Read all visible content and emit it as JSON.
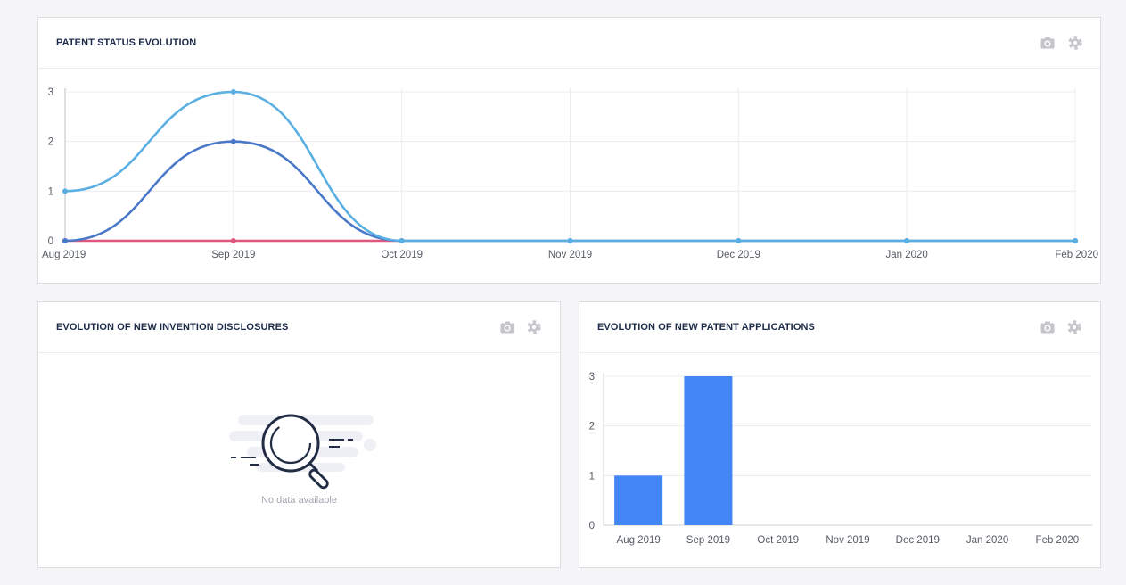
{
  "colors": {
    "series_light_blue": "#5aafe2",
    "series_dark_blue": "#4a78c8",
    "series_pink": "#e0577e",
    "bar_blue": "#4385f5",
    "icon_gray": "#c4c6cb"
  },
  "cards": {
    "status": {
      "title": "PATENT STATUS EVOLUTION",
      "icons": [
        "camera-icon",
        "gear-icon"
      ]
    },
    "disclosures": {
      "title": "EVOLUTION OF NEW INVENTION DISCLOSURES",
      "icons": [
        "camera-icon",
        "gear-icon"
      ],
      "empty_text": "No data available",
      "empty_icon": "magnifier-icon"
    },
    "applications": {
      "title": "EVOLUTION OF NEW PATENT APPLICATIONS",
      "icons": [
        "camera-icon",
        "gear-icon"
      ]
    }
  },
  "chart_data": [
    {
      "type": "line",
      "title": "PATENT STATUS EVOLUTION",
      "categories": [
        "Aug 2019",
        "Sep 2019",
        "Oct 2019",
        "Nov 2019",
        "Dec 2019",
        "Jan 2020",
        "Feb 2020"
      ],
      "series": [
        {
          "color": "#5aafe2",
          "values": [
            1,
            3,
            0,
            0,
            0,
            0,
            0
          ]
        },
        {
          "color": "#4a78c8",
          "values": [
            0,
            2,
            0,
            0,
            0,
            0,
            0
          ]
        },
        {
          "color": "#e0577e",
          "values": [
            0,
            0,
            0,
            null,
            null,
            null,
            null
          ]
        }
      ],
      "ylim": [
        0,
        3
      ],
      "yticks": [
        0,
        1,
        2,
        3
      ],
      "grid": true,
      "smooth": true
    },
    {
      "type": "bar",
      "title": "EVOLUTION OF NEW PATENT APPLICATIONS",
      "categories": [
        "Aug 2019",
        "Sep 2019",
        "Oct 2019",
        "Nov 2019",
        "Dec 2019",
        "Jan 2020",
        "Feb 2020"
      ],
      "values": [
        1,
        3,
        0,
        0,
        0,
        0,
        0
      ],
      "color": "#4385f5",
      "ylim": [
        0,
        3
      ],
      "yticks": [
        0,
        1,
        2,
        3
      ],
      "grid": true
    }
  ]
}
